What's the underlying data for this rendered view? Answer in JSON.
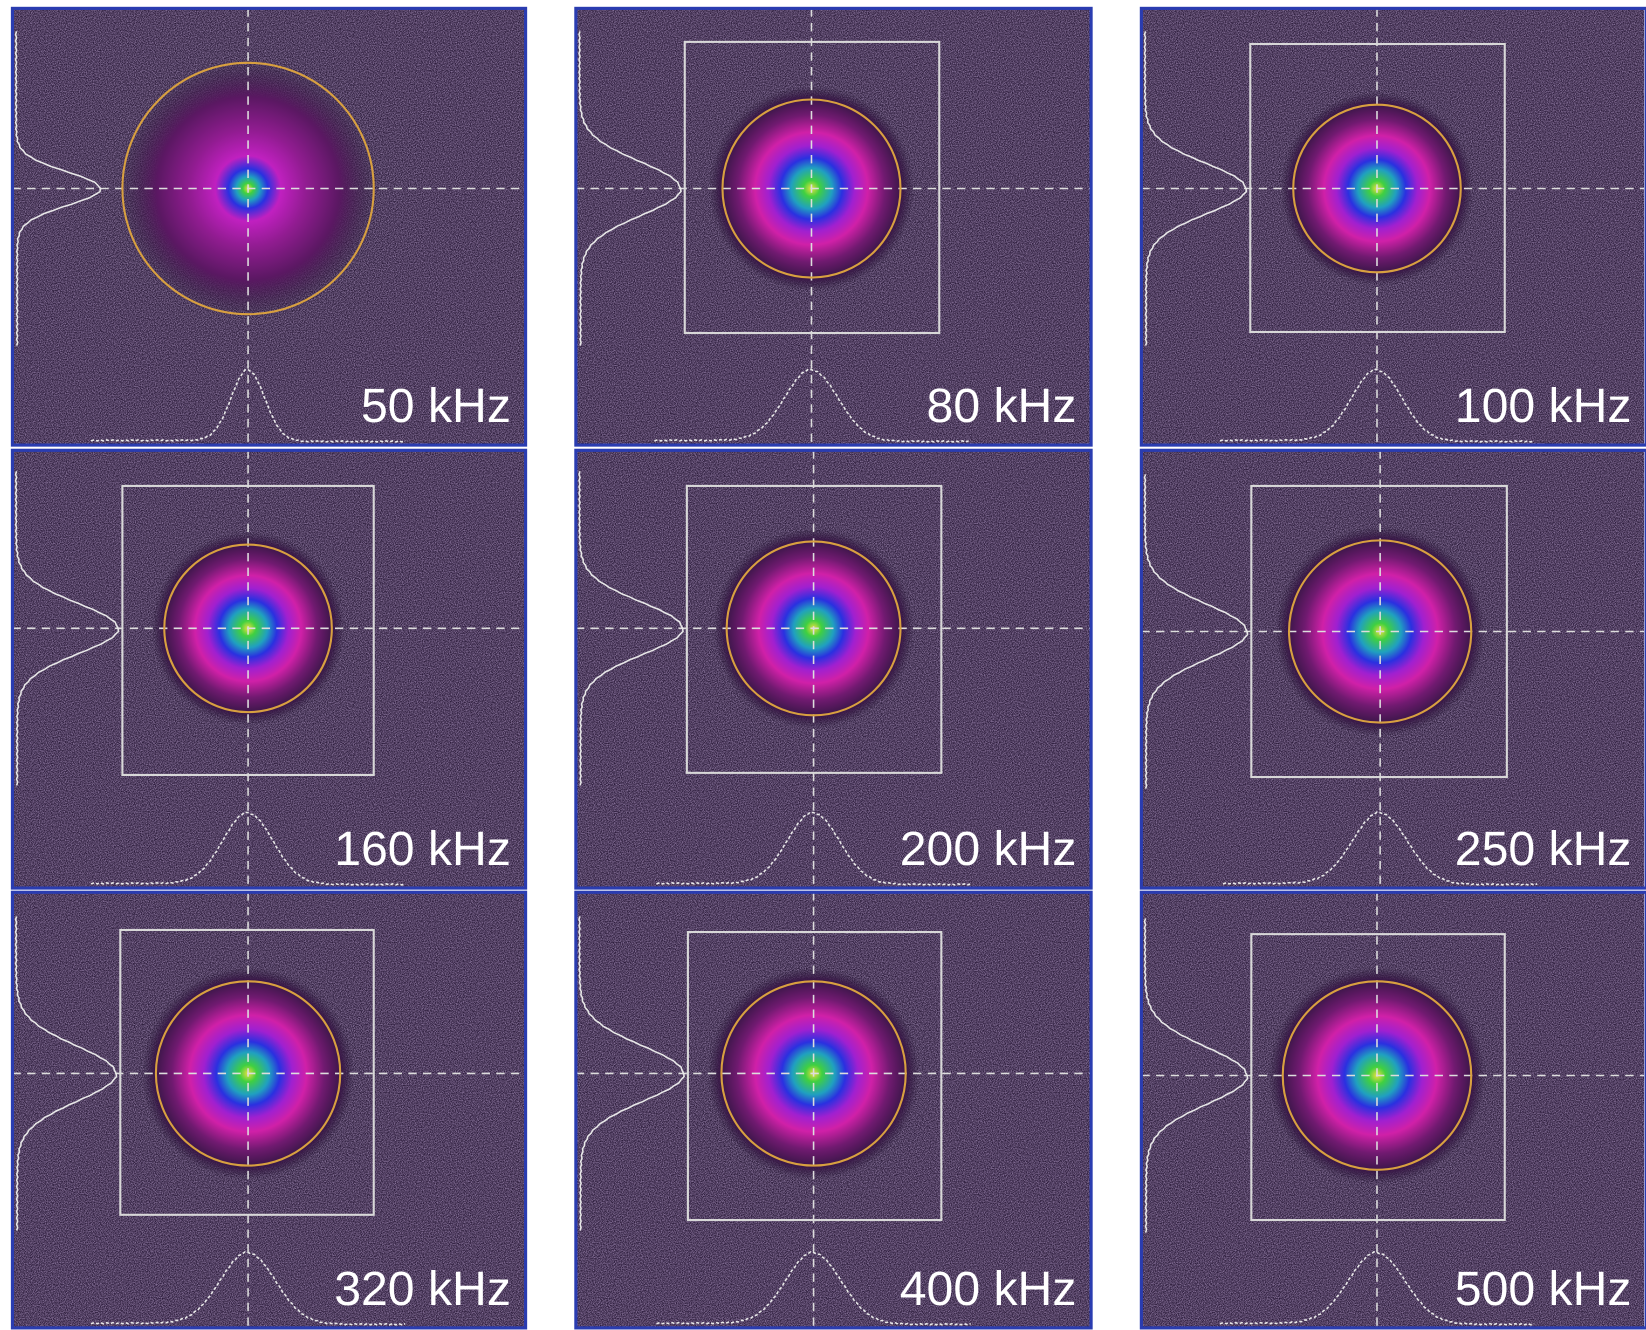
{
  "panels": [
    {
      "label": "50 kHz"
    },
    {
      "label": "80 kHz"
    },
    {
      "label": "100 kHz"
    },
    {
      "label": "160 kHz"
    },
    {
      "label": "200 kHz"
    },
    {
      "label": "250 kHz"
    },
    {
      "label": "320 kHz"
    },
    {
      "label": "400 kHz"
    },
    {
      "label": "500 kHz"
    }
  ]
}
